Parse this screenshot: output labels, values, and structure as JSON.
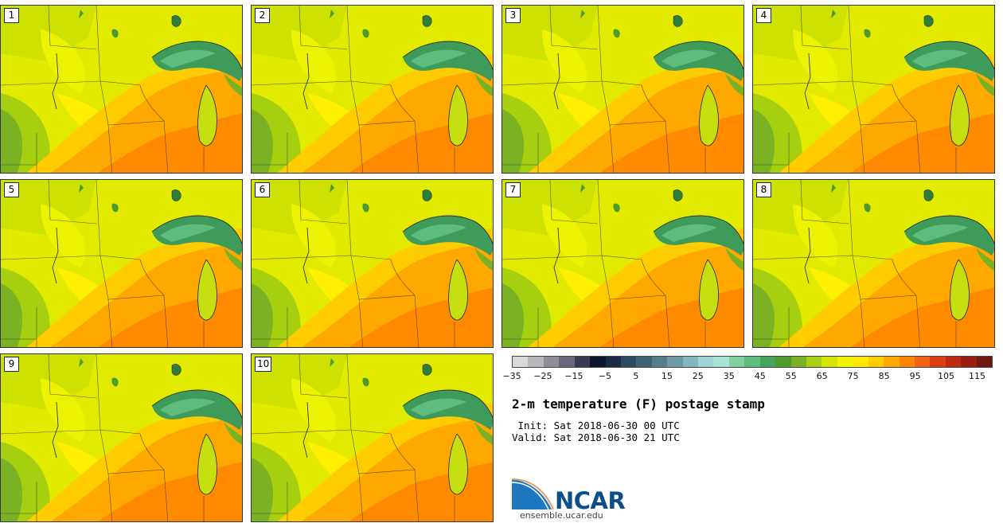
{
  "panels": [
    {
      "label": "1"
    },
    {
      "label": "2"
    },
    {
      "label": "3"
    },
    {
      "label": "4"
    },
    {
      "label": "5"
    },
    {
      "label": "6"
    },
    {
      "label": "7"
    },
    {
      "label": "8"
    },
    {
      "label": "9"
    },
    {
      "label": "10"
    }
  ],
  "colorbar": {
    "colors": [
      "#d9d9d9",
      "#b8b8bc",
      "#8e8e98",
      "#68687a",
      "#3a3a52",
      "#0d1530",
      "#1a2b44",
      "#2e4a60",
      "#3f6274",
      "#557e8c",
      "#6d9aa6",
      "#86b7bd",
      "#9fd4d2",
      "#a8e3d8",
      "#7fcf9f",
      "#5ebc7e",
      "#45a35c",
      "#4d9a2f",
      "#7ab223",
      "#aad016",
      "#d6e600",
      "#f2f200",
      "#ffe800",
      "#ffcc00",
      "#ffa800",
      "#ff8400",
      "#f26414",
      "#dd3e0e",
      "#bf2a10",
      "#9b1d0e",
      "#6e1a10"
    ],
    "ticks": [
      "−35",
      "−25",
      "−15",
      "−5",
      "5",
      "15",
      "25",
      "35",
      "45",
      "55",
      "65",
      "75",
      "85",
      "95",
      "105",
      "115"
    ]
  },
  "title": "2-m temperature (F) postage stamp",
  "init_line": " Init: Sat 2018-06-30 00 UTC",
  "valid_line": "Valid: Sat 2018-06-30 21 UTC",
  "logo_text": "NCAR",
  "url": "ensemble.ucar.edu"
}
